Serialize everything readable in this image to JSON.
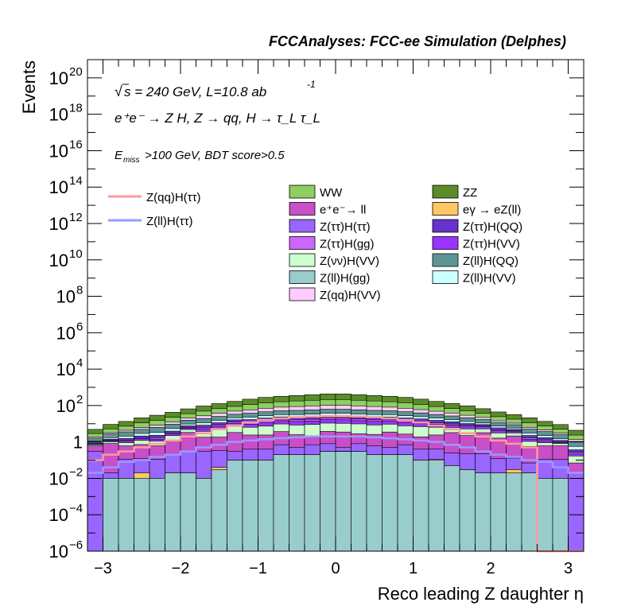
{
  "header": {
    "title": "FCCAnalyses: FCC-ee Simulation (Delphes)"
  },
  "annotations": {
    "sqrt": "√",
    "energy_text": "s = 240 GeV, L=10.8 ab",
    "energy_exp": "-1",
    "process_text": "e⁺e⁻ → Z H, Z → qq, H → τ_L τ_L",
    "cut_prefix": "E",
    "cut_sub": "miss",
    "cut_rest": ">100 GeV, BDT score>0.5"
  },
  "colors": {
    "WW": "#8fce62",
    "ZZ": "#5b8c2a",
    "ee_ll": "#c84fc8",
    "egamma_eZll": "#fdc862",
    "Ztautau_Htautau": "#9966ff",
    "Ztautau_HQQ": "#6633cc",
    "Ztautau_Hgg": "#cc66ff",
    "Ztautau_HVV": "#9933ff",
    "Znunu_HVV": "#ccffcc",
    "Zll_HQQ": "#5f9494",
    "Zll_Hgg": "#99cccc",
    "Zll_HVV": "#ccffff",
    "Zqq_HVV": "#ffccff",
    "sig_qq": "#ff9999",
    "sig_ll": "#9999ff"
  },
  "chart_data": {
    "type": "histogram",
    "title": "FCCAnalyses: FCC-ee Simulation (Delphes)",
    "xlabel": "Reco leading Z daughter η",
    "ylabel": "Events",
    "xlim": [
      -3.2,
      3.2
    ],
    "ylim": [
      1e-06,
      1e+21
    ],
    "log_y": true,
    "x_ticks": [
      "−3",
      "−2",
      "−1",
      "0",
      "1",
      "2",
      "3"
    ],
    "y_ticks": [
      "10^-6",
      "10^-4",
      "10^-2",
      "1",
      "10^2",
      "10^4",
      "10^6",
      "10^8",
      "10^10",
      "10^12",
      "10^14",
      "10^16",
      "10^18",
      "10^20"
    ],
    "bin_edges": [
      -3.2,
      -3.0,
      -2.8,
      -2.6,
      -2.4,
      -2.2,
      -2.0,
      -1.8,
      -1.6,
      -1.4,
      -1.2,
      -1.0,
      -0.8,
      -0.6,
      -0.4,
      -0.2,
      0.0,
      0.2,
      0.4,
      0.6,
      0.8,
      1.0,
      1.2,
      1.4,
      1.6,
      1.8,
      2.0,
      2.2,
      2.4,
      2.6,
      2.8,
      3.0,
      3.2
    ],
    "stack_series": [
      {
        "name": "Z(ll)H(gg)",
        "values": [
          1e-06,
          0.01,
          0.01,
          0.01,
          0.01,
          0.02,
          0.02,
          0.01,
          0.03,
          0.1,
          0.1,
          0.1,
          0.2,
          0.2,
          0.2,
          0.3,
          0.3,
          0.3,
          0.2,
          0.2,
          0.2,
          0.1,
          0.1,
          0.05,
          0.03,
          0.02,
          0.02,
          0.02,
          0.02,
          0.01,
          0.01,
          1e-06
        ]
      },
      {
        "name": "eγ → eZ(ll)",
        "values": [
          0,
          0,
          0,
          0.01,
          0,
          0,
          0,
          0,
          0.01,
          0,
          0,
          0,
          0,
          0,
          0,
          0,
          0.01,
          0,
          0,
          0,
          0,
          0,
          0.01,
          0,
          0,
          0,
          0,
          0.01,
          0,
          0,
          0,
          0
        ]
      },
      {
        "name": "Z(ττ)H(ττ)",
        "values": [
          0.3,
          0.01,
          0.1,
          0.1,
          0.1,
          0.2,
          0.3,
          0.3,
          0.3,
          0.2,
          0.3,
          0.3,
          0.5,
          0.3,
          0.5,
          0.5,
          0.2,
          0.5,
          0.4,
          0.3,
          0.5,
          0.3,
          0.3,
          0.2,
          0.2,
          0.2,
          0.1,
          0.1,
          0.05,
          0.1,
          0.1,
          0.02
        ]
      },
      {
        "name": "e⁺e⁻→ ll",
        "values": [
          0.3,
          0.8,
          0.5,
          0.6,
          0.5,
          1,
          3,
          1.5,
          1.5,
          3,
          2,
          2,
          3,
          2,
          1.5,
          3,
          3,
          2,
          2,
          3,
          2,
          1.5,
          2,
          3,
          2,
          3,
          1.5,
          2,
          0.5,
          0.5,
          0.5,
          0.05
        ]
      },
      {
        "name": "Z(νν)H(VV)",
        "values": [
          0.1,
          0.2,
          0.3,
          0.5,
          0.5,
          1,
          1.5,
          2,
          3,
          4,
          4,
          5,
          6,
          6,
          7,
          7,
          7,
          7,
          6,
          6,
          5,
          5,
          4,
          3,
          3,
          2,
          1.5,
          1,
          0.5,
          0.3,
          0.2,
          0.1
        ]
      },
      {
        "name": "Z(ττ)H(VV)",
        "values": [
          0.05,
          0.1,
          0.2,
          0.3,
          0.3,
          0.5,
          1,
          1.5,
          2,
          3,
          3,
          4,
          5,
          5,
          5,
          6,
          6,
          5,
          5,
          5,
          4,
          4,
          3,
          2,
          2,
          1.5,
          1,
          0.5,
          0.3,
          0.2,
          0.1,
          0.05
        ]
      },
      {
        "name": "Z(ττ)H(gg)",
        "values": [
          0.05,
          0.1,
          0.15,
          0.2,
          0.3,
          0.4,
          0.6,
          1,
          1.5,
          2,
          2.5,
          3,
          3,
          3.5,
          3.5,
          4,
          4,
          3.5,
          3.5,
          3,
          3,
          2.5,
          2,
          1.5,
          1,
          0.8,
          0.6,
          0.4,
          0.3,
          0.2,
          0.1,
          0.05
        ]
      },
      {
        "name": "Z(ττ)H(QQ)",
        "values": [
          0.1,
          0.2,
          0.3,
          0.4,
          0.6,
          0.8,
          1.2,
          2,
          3,
          4,
          5,
          6,
          6,
          7,
          7,
          8,
          8,
          7,
          7,
          6,
          6,
          5,
          4,
          3,
          2,
          1.5,
          1.2,
          0.8,
          0.6,
          0.4,
          0.2,
          0.1
        ]
      },
      {
        "name": "Z(ll)H(VV)",
        "values": [
          0.2,
          0.3,
          0.5,
          0.8,
          1,
          1.5,
          2,
          3,
          4,
          5,
          6,
          7,
          8,
          8,
          9,
          9,
          9,
          9,
          8,
          8,
          7,
          6,
          5,
          4,
          3,
          2,
          1.5,
          1,
          0.8,
          0.5,
          0.3,
          0.2
        ]
      },
      {
        "name": "Z(ll)H(QQ)",
        "values": [
          0.5,
          1,
          1.5,
          2,
          3,
          4,
          6,
          8,
          10,
          12,
          15,
          18,
          20,
          22,
          24,
          25,
          25,
          24,
          22,
          20,
          18,
          15,
          12,
          10,
          8,
          6,
          4,
          3,
          2,
          1.5,
          1,
          0.5
        ]
      },
      {
        "name": "Z(qq)H(VV)",
        "values": [
          0.3,
          0.5,
          0.8,
          1.2,
          2,
          3,
          5,
          8,
          12,
          16,
          20,
          25,
          30,
          34,
          37,
          40,
          40,
          37,
          34,
          30,
          25,
          20,
          16,
          12,
          8,
          5,
          3,
          2,
          1.2,
          0.8,
          0.5,
          0.3
        ]
      },
      {
        "name": "WW",
        "values": [
          1,
          2,
          3,
          5,
          7,
          10,
          15,
          22,
          30,
          40,
          55,
          70,
          80,
          90,
          100,
          110,
          110,
          100,
          90,
          80,
          70,
          55,
          40,
          30,
          22,
          15,
          10,
          7,
          5,
          3,
          2,
          1
        ]
      },
      {
        "name": "ZZ",
        "values": [
          2,
          4,
          6,
          10,
          14,
          20,
          30,
          45,
          60,
          80,
          110,
          140,
          160,
          180,
          200,
          220,
          220,
          200,
          180,
          160,
          140,
          110,
          80,
          60,
          45,
          30,
          20,
          14,
          10,
          6,
          4,
          2
        ]
      }
    ],
    "line_series": [
      {
        "name": "Z(qq)H(ττ)",
        "values": [
          0.1,
          0.2,
          0.3,
          0.5,
          0.8,
          1.2,
          2,
          3,
          5,
          8,
          12,
          16,
          20,
          23,
          25,
          26,
          26,
          25,
          23,
          20,
          16,
          12,
          8,
          5,
          3,
          2,
          1.2,
          0.8,
          0.5,
          1e-06,
          1e-06,
          1e-06
        ]
      },
      {
        "name": "Z(ll)H(ττ)",
        "values": [
          0.02,
          0.04,
          0.08,
          0.1,
          0.15,
          0.2,
          0.3,
          0.5,
          0.7,
          1,
          1.2,
          1.4,
          1.6,
          1.8,
          2,
          2,
          2,
          2,
          1.8,
          1.6,
          1.4,
          1.2,
          1,
          0.7,
          0.5,
          0.3,
          0.2,
          0.15,
          0.1,
          0.08,
          0.04,
          0.02
        ]
      }
    ],
    "legend": {
      "lines": [
        "Z(qq)H(ττ)",
        "Z(ll)H(ττ)"
      ],
      "col1": [
        "WW",
        "e⁺e⁻→ ll",
        "Z(ττ)H(ττ)",
        "Z(ττ)H(gg)",
        "Z(νν)H(VV)",
        "Z(ll)H(gg)",
        "Z(qq)H(VV)"
      ],
      "col2": [
        "ZZ",
        "eγ → eZ(ll)",
        "Z(ττ)H(QQ)",
        "Z(ττ)H(VV)",
        "Z(ll)H(QQ)",
        "Z(ll)H(VV)"
      ]
    }
  }
}
